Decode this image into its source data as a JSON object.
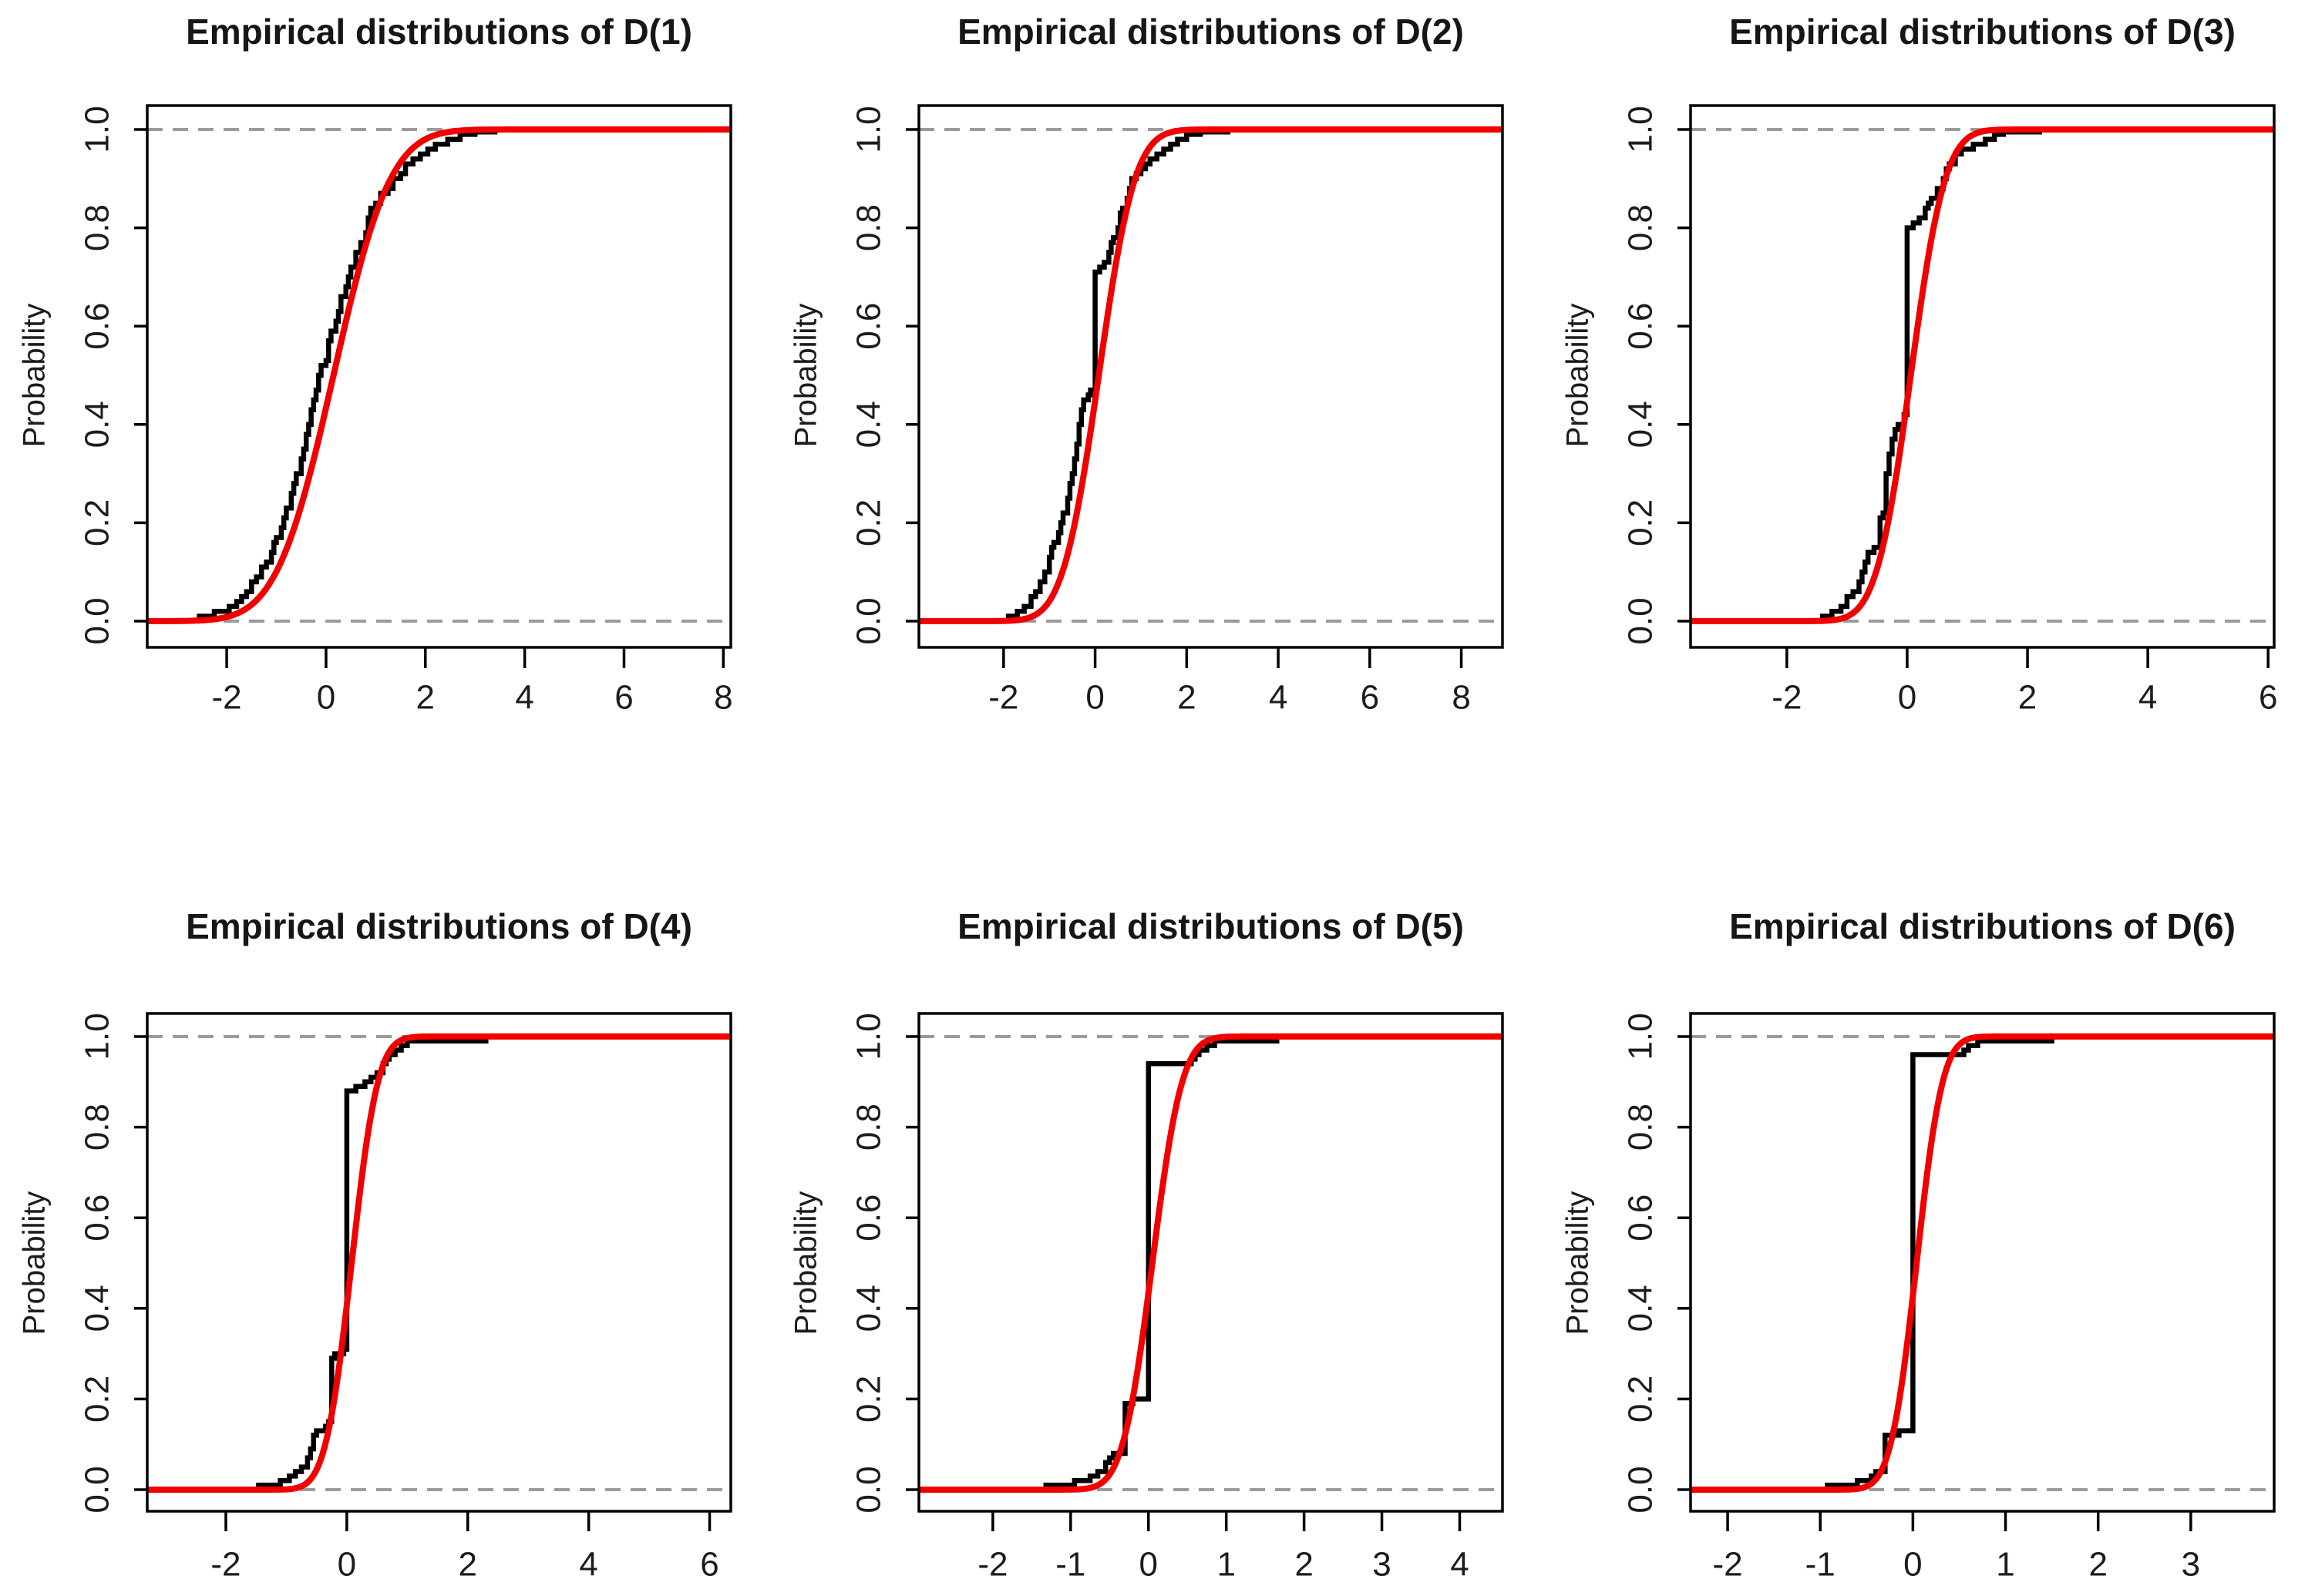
{
  "figure": {
    "kind": "R-style 2x3 panel of empirical CDF plots",
    "background": "#ffffff"
  },
  "colors": {
    "ecdf_line": "#000000",
    "fitted_line": "#f20000",
    "dashed_guide": "#9b9b9b",
    "axis": "#000000",
    "title_text": "#161616",
    "tick_text": "#1c1c1c"
  },
  "y_axis": {
    "label": "Probability",
    "ticks": [
      0.0,
      0.2,
      0.4,
      0.6,
      0.8,
      1.0
    ],
    "tick_labels": [
      "0.0",
      "0.2",
      "0.4",
      "0.6",
      "0.8",
      "1.0"
    ]
  },
  "chart_data": [
    {
      "type": "line",
      "title": "Empirical distributions of D(1)",
      "xlabel": "",
      "ylabel": "Probability",
      "xlim": [
        -3.6,
        8.15
      ],
      "ylim": [
        0,
        1
      ],
      "x_ticks": [
        -2,
        0,
        2,
        4,
        6,
        8
      ],
      "y_ticks": [
        0.0,
        0.2,
        0.4,
        0.6,
        0.8,
        1.0
      ],
      "y_tick_labels": [
        "0.0",
        "0.2",
        "0.4",
        "0.6",
        "0.8",
        "1.0"
      ],
      "grid": "dashed horizontal guides at y=0 and y=1",
      "legend": "none",
      "series": [
        {
          "name": "empirical-cdf",
          "style": "step",
          "color_key": "ecdf_line",
          "points": [
            [
              -2.6,
              0.01
            ],
            [
              -2.25,
              0.02
            ],
            [
              -1.95,
              0.03
            ],
            [
              -1.8,
              0.04
            ],
            [
              -1.7,
              0.05
            ],
            [
              -1.6,
              0.06
            ],
            [
              -1.5,
              0.08
            ],
            [
              -1.4,
              0.09
            ],
            [
              -1.3,
              0.11
            ],
            [
              -1.2,
              0.12
            ],
            [
              -1.1,
              0.14
            ],
            [
              -1.05,
              0.16
            ],
            [
              -1.0,
              0.17
            ],
            [
              -0.9,
              0.19
            ],
            [
              -0.85,
              0.21
            ],
            [
              -0.8,
              0.23
            ],
            [
              -0.7,
              0.26
            ],
            [
              -0.65,
              0.28
            ],
            [
              -0.6,
              0.3
            ],
            [
              -0.5,
              0.33
            ],
            [
              -0.45,
              0.35
            ],
            [
              -0.4,
              0.38
            ],
            [
              -0.35,
              0.4
            ],
            [
              -0.3,
              0.43
            ],
            [
              -0.25,
              0.45
            ],
            [
              -0.2,
              0.47
            ],
            [
              -0.15,
              0.5
            ],
            [
              -0.1,
              0.52
            ],
            [
              0.0,
              0.53
            ],
            [
              0.05,
              0.57
            ],
            [
              0.1,
              0.59
            ],
            [
              0.2,
              0.61
            ],
            [
              0.25,
              0.63
            ],
            [
              0.3,
              0.66
            ],
            [
              0.4,
              0.68
            ],
            [
              0.45,
              0.7
            ],
            [
              0.5,
              0.72
            ],
            [
              0.6,
              0.75
            ],
            [
              0.7,
              0.77
            ],
            [
              0.8,
              0.79
            ],
            [
              0.85,
              0.82
            ],
            [
              0.9,
              0.84
            ],
            [
              1.0,
              0.85
            ],
            [
              1.1,
              0.87
            ],
            [
              1.25,
              0.88
            ],
            [
              1.35,
              0.9
            ],
            [
              1.5,
              0.91
            ],
            [
              1.6,
              0.93
            ],
            [
              1.75,
              0.94
            ],
            [
              1.9,
              0.95
            ],
            [
              2.05,
              0.96
            ],
            [
              2.2,
              0.97
            ],
            [
              2.45,
              0.98
            ],
            [
              2.7,
              0.99
            ],
            [
              3.0,
              0.995
            ],
            [
              3.4,
              1.0
            ]
          ]
        },
        {
          "name": "fitted-normal-cdf",
          "style": "normal-cdf",
          "color_key": "fitted_line",
          "mean": 0.15,
          "sd": 0.9
        }
      ]
    },
    {
      "type": "line",
      "title": "Empirical distributions of D(2)",
      "xlabel": "",
      "ylabel": "Probability",
      "xlim": [
        -3.85,
        8.9
      ],
      "ylim": [
        0,
        1
      ],
      "x_ticks": [
        -2,
        0,
        2,
        4,
        6,
        8
      ],
      "y_ticks": [
        0.0,
        0.2,
        0.4,
        0.6,
        0.8,
        1.0
      ],
      "y_tick_labels": [
        "0.0",
        "0.2",
        "0.4",
        "0.6",
        "0.8",
        "1.0"
      ],
      "grid": "dashed horizontal guides at y=0 and y=1",
      "legend": "none",
      "series": [
        {
          "name": "empirical-cdf",
          "style": "step",
          "color_key": "ecdf_line",
          "points": [
            [
              -1.95,
              0.01
            ],
            [
              -1.7,
              0.02
            ],
            [
              -1.55,
              0.03
            ],
            [
              -1.4,
              0.05
            ],
            [
              -1.3,
              0.06
            ],
            [
              -1.2,
              0.08
            ],
            [
              -1.1,
              0.1
            ],
            [
              -1.0,
              0.13
            ],
            [
              -0.95,
              0.15
            ],
            [
              -0.9,
              0.16
            ],
            [
              -0.8,
              0.18
            ],
            [
              -0.75,
              0.2
            ],
            [
              -0.7,
              0.22
            ],
            [
              -0.6,
              0.25
            ],
            [
              -0.55,
              0.28
            ],
            [
              -0.5,
              0.3
            ],
            [
              -0.45,
              0.33
            ],
            [
              -0.4,
              0.36
            ],
            [
              -0.35,
              0.4
            ],
            [
              -0.3,
              0.43
            ],
            [
              -0.25,
              0.45
            ],
            [
              -0.15,
              0.46
            ],
            [
              -0.1,
              0.47
            ],
            [
              0.0,
              0.71
            ],
            [
              0.1,
              0.72
            ],
            [
              0.2,
              0.73
            ],
            [
              0.3,
              0.75
            ],
            [
              0.35,
              0.77
            ],
            [
              0.4,
              0.78
            ],
            [
              0.5,
              0.8
            ],
            [
              0.55,
              0.83
            ],
            [
              0.6,
              0.84
            ],
            [
              0.7,
              0.86
            ],
            [
              0.75,
              0.88
            ],
            [
              0.8,
              0.9
            ],
            [
              0.9,
              0.91
            ],
            [
              1.0,
              0.92
            ],
            [
              1.1,
              0.93
            ],
            [
              1.2,
              0.94
            ],
            [
              1.35,
              0.95
            ],
            [
              1.5,
              0.96
            ],
            [
              1.65,
              0.97
            ],
            [
              1.8,
              0.98
            ],
            [
              2.0,
              0.99
            ],
            [
              2.3,
              0.995
            ],
            [
              2.9,
              1.0
            ]
          ]
        },
        {
          "name": "fitted-normal-cdf",
          "style": "normal-cdf",
          "color_key": "fitted_line",
          "mean": 0.08,
          "sd": 0.62
        }
      ]
    },
    {
      "type": "line",
      "title": "Empirical distributions of D(3)",
      "xlabel": "",
      "ylabel": "Probability",
      "xlim": [
        -3.6,
        6.1
      ],
      "ylim": [
        0,
        1
      ],
      "x_ticks": [
        -2,
        0,
        2,
        4,
        6
      ],
      "y_ticks": [
        0.0,
        0.2,
        0.4,
        0.6,
        0.8,
        1.0
      ],
      "y_tick_labels": [
        "0.0",
        "0.2",
        "0.4",
        "0.6",
        "0.8",
        "1.0"
      ],
      "grid": "dashed horizontal guides at y=0 and y=1",
      "legend": "none",
      "series": [
        {
          "name": "empirical-cdf",
          "style": "step",
          "color_key": "ecdf_line",
          "points": [
            [
              -1.45,
              0.01
            ],
            [
              -1.25,
              0.02
            ],
            [
              -1.1,
              0.03
            ],
            [
              -1.0,
              0.05
            ],
            [
              -0.9,
              0.06
            ],
            [
              -0.8,
              0.08
            ],
            [
              -0.75,
              0.1
            ],
            [
              -0.7,
              0.12
            ],
            [
              -0.65,
              0.14
            ],
            [
              -0.55,
              0.15
            ],
            [
              -0.45,
              0.21
            ],
            [
              -0.4,
              0.22
            ],
            [
              -0.35,
              0.3
            ],
            [
              -0.3,
              0.34
            ],
            [
              -0.25,
              0.37
            ],
            [
              -0.2,
              0.39
            ],
            [
              -0.15,
              0.4
            ],
            [
              -0.05,
              0.42
            ],
            [
              0.0,
              0.8
            ],
            [
              0.1,
              0.81
            ],
            [
              0.2,
              0.82
            ],
            [
              0.3,
              0.84
            ],
            [
              0.35,
              0.85
            ],
            [
              0.4,
              0.86
            ],
            [
              0.5,
              0.88
            ],
            [
              0.6,
              0.9
            ],
            [
              0.65,
              0.92
            ],
            [
              0.7,
              0.93
            ],
            [
              0.8,
              0.95
            ],
            [
              0.9,
              0.96
            ],
            [
              1.1,
              0.97
            ],
            [
              1.3,
              0.98
            ],
            [
              1.45,
              0.99
            ],
            [
              1.6,
              0.995
            ],
            [
              2.2,
              1.0
            ]
          ]
        },
        {
          "name": "fitted-normal-cdf",
          "style": "normal-cdf",
          "color_key": "fitted_line",
          "mean": 0.06,
          "sd": 0.45
        }
      ]
    },
    {
      "type": "line",
      "title": "Empirical distributions of D(4)",
      "xlabel": "",
      "ylabel": "Probability",
      "xlim": [
        -3.3,
        6.35
      ],
      "ylim": [
        0,
        1
      ],
      "x_ticks": [
        -2,
        0,
        2,
        4,
        6
      ],
      "y_ticks": [
        0.0,
        0.2,
        0.4,
        0.6,
        0.8,
        1.0
      ],
      "y_tick_labels": [
        "0.0",
        "0.2",
        "0.4",
        "0.6",
        "0.8",
        "1.0"
      ],
      "grid": "dashed horizontal guides at y=0 and y=1",
      "legend": "none",
      "series": [
        {
          "name": "empirical-cdf",
          "style": "step",
          "color_key": "ecdf_line",
          "points": [
            [
              -1.5,
              0.01
            ],
            [
              -1.1,
              0.02
            ],
            [
              -0.95,
              0.03
            ],
            [
              -0.85,
              0.04
            ],
            [
              -0.75,
              0.05
            ],
            [
              -0.65,
              0.07
            ],
            [
              -0.6,
              0.09
            ],
            [
              -0.55,
              0.12
            ],
            [
              -0.5,
              0.13
            ],
            [
              -0.35,
              0.14
            ],
            [
              -0.3,
              0.15
            ],
            [
              -0.25,
              0.29
            ],
            [
              -0.2,
              0.3
            ],
            [
              -0.05,
              0.31
            ],
            [
              0.0,
              0.88
            ],
            [
              0.15,
              0.89
            ],
            [
              0.3,
              0.9
            ],
            [
              0.4,
              0.91
            ],
            [
              0.5,
              0.92
            ],
            [
              0.6,
              0.94
            ],
            [
              0.65,
              0.95
            ],
            [
              0.7,
              0.96
            ],
            [
              0.8,
              0.97
            ],
            [
              0.9,
              0.98
            ],
            [
              1.0,
              0.99
            ],
            [
              2.3,
              1.0
            ]
          ]
        },
        {
          "name": "fitted-normal-cdf",
          "style": "normal-cdf",
          "color_key": "fitted_line",
          "mean": 0.08,
          "sd": 0.34
        }
      ]
    },
    {
      "type": "line",
      "title": "Empirical distributions of D(5)",
      "xlabel": "",
      "ylabel": "Probability",
      "xlim": [
        -2.95,
        4.55
      ],
      "ylim": [
        0,
        1
      ],
      "x_ticks": [
        -2,
        -1,
        0,
        1,
        2,
        3,
        4
      ],
      "y_ticks": [
        0.0,
        0.2,
        0.4,
        0.6,
        0.8,
        1.0
      ],
      "y_tick_labels": [
        "0.0",
        "0.2",
        "0.4",
        "0.6",
        "0.8",
        "1.0"
      ],
      "grid": "dashed horizontal guides at y=0 and y=1",
      "legend": "none",
      "series": [
        {
          "name": "empirical-cdf",
          "style": "step",
          "color_key": "ecdf_line",
          "points": [
            [
              -1.35,
              0.01
            ],
            [
              -0.95,
              0.02
            ],
            [
              -0.75,
              0.03
            ],
            [
              -0.65,
              0.04
            ],
            [
              -0.55,
              0.06
            ],
            [
              -0.5,
              0.07
            ],
            [
              -0.45,
              0.08
            ],
            [
              -0.3,
              0.19
            ],
            [
              -0.2,
              0.2
            ],
            [
              0.0,
              0.94
            ],
            [
              0.55,
              0.95
            ],
            [
              0.6,
              0.96
            ],
            [
              0.65,
              0.97
            ],
            [
              0.75,
              0.98
            ],
            [
              0.85,
              0.99
            ],
            [
              1.65,
              1.0
            ]
          ]
        },
        {
          "name": "fitted-normal-cdf",
          "style": "normal-cdf",
          "color_key": "fitted_line",
          "mean": 0.05,
          "sd": 0.3
        }
      ]
    },
    {
      "type": "line",
      "title": "Empirical distributions of D(6)",
      "xlabel": "",
      "ylabel": "Probability",
      "xlim": [
        -2.4,
        3.9
      ],
      "ylim": [
        0,
        1
      ],
      "x_ticks": [
        -2,
        -1,
        0,
        1,
        2,
        3
      ],
      "y_ticks": [
        0.0,
        0.2,
        0.4,
        0.6,
        0.8,
        1.0
      ],
      "y_tick_labels": [
        "0.0",
        "0.2",
        "0.4",
        "0.6",
        "0.8",
        "1.0"
      ],
      "grid": "dashed horizontal guides at y=0 and y=1",
      "legend": "none",
      "series": [
        {
          "name": "empirical-cdf",
          "style": "step",
          "color_key": "ecdf_line",
          "points": [
            [
              -0.95,
              0.01
            ],
            [
              -0.6,
              0.02
            ],
            [
              -0.45,
              0.03
            ],
            [
              -0.4,
              0.04
            ],
            [
              -0.3,
              0.12
            ],
            [
              -0.15,
              0.13
            ],
            [
              0.0,
              0.96
            ],
            [
              0.55,
              0.97
            ],
            [
              0.6,
              0.98
            ],
            [
              0.7,
              0.99
            ],
            [
              1.5,
              1.0
            ]
          ]
        },
        {
          "name": "fitted-normal-cdf",
          "style": "normal-cdf",
          "color_key": "fitted_line",
          "mean": 0.04,
          "sd": 0.22
        }
      ]
    }
  ]
}
